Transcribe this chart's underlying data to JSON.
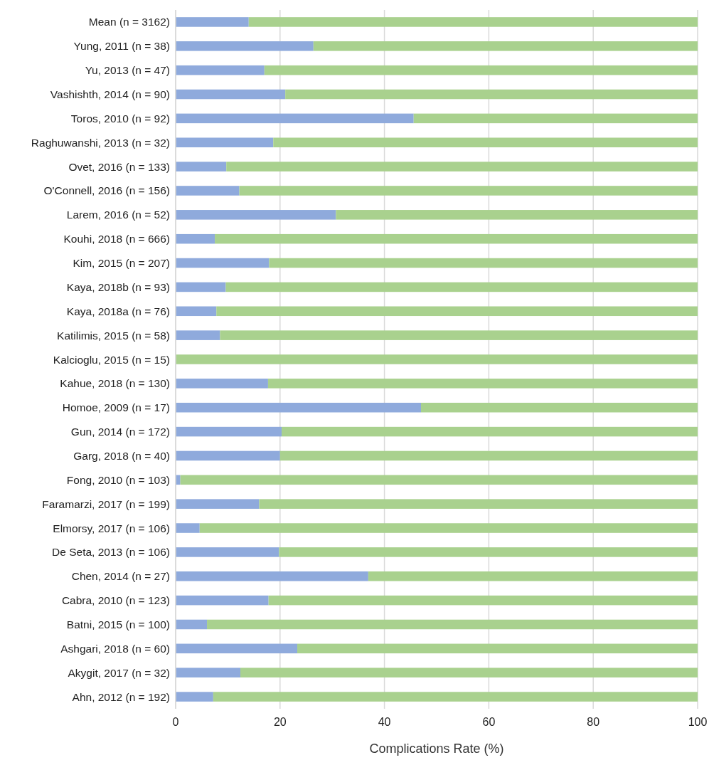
{
  "chart_data": {
    "type": "bar",
    "orientation": "horizontal",
    "stacked": true,
    "xlabel": "Complications Rate (%)",
    "categories": [
      "Mean (n = 3162)",
      "Yung, 2011 (n = 38)",
      "Yu, 2013 (n = 47)",
      "Vashishth, 2014  (n = 90)",
      "Toros, 2010 (n = 92)",
      "Raghuwanshi, 2013 (n = 32)",
      "Ovet, 2016 (n = 133)",
      "O'Connell, 2016 (n = 156)",
      "Larem, 2016 (n = 52)",
      "Kouhi, 2018 (n = 666)",
      "Kim, 2015 (n = 207)",
      "Kaya, 2018b (n = 93)",
      "Kaya, 2018a (n = 76)",
      "Katilimis, 2015 (n = 58)",
      "Kalcioglu, 2015 (n = 15)",
      "Kahue, 2018 (n = 130)",
      "Homoe, 2009 (n = 17)",
      "Gun, 2014 (n = 172)",
      "Garg, 2018 (n = 40)",
      "Fong, 2010 (n = 103)",
      "Faramarzi, 2017 (n = 199)",
      "Elmorsy, 2017 (n = 106)",
      "De Seta, 2013 (n = 106)",
      "Chen, 2014 (n = 27)",
      "Cabra, 2010 (n = 123)",
      "Batni, 2015 (n = 100)",
      "Ashgari, 2018 (n = 60)",
      "Akygit, 2017 (n = 32)",
      "Ahn, 2012 (n = 192)"
    ],
    "series": [
      {
        "color": "#8faadc",
        "values": [
          14.0,
          26.4,
          17.0,
          21.0,
          45.6,
          18.7,
          9.7,
          12.2,
          30.7,
          7.5,
          17.9,
          9.6,
          7.8,
          8.5,
          0,
          17.7,
          47.0,
          20.3,
          20.0,
          0.9,
          16.0,
          4.6,
          19.8,
          36.9,
          17.8,
          6.0,
          23.3,
          12.4,
          7.2
        ]
      },
      {
        "color": "#a9d18e",
        "values": [
          86.0,
          73.6,
          83.0,
          79.0,
          54.4,
          81.3,
          90.3,
          87.8,
          69.3,
          92.5,
          82.1,
          90.4,
          92.2,
          91.5,
          100,
          82.3,
          53.0,
          79.7,
          80.0,
          99.1,
          84.0,
          95.4,
          80.2,
          63.1,
          82.2,
          94.0,
          76.7,
          87.6,
          92.8
        ]
      }
    ],
    "xlim": [
      0,
      100
    ],
    "xticks": [
      0,
      20,
      40,
      60,
      80,
      100
    ],
    "grid": "x"
  }
}
